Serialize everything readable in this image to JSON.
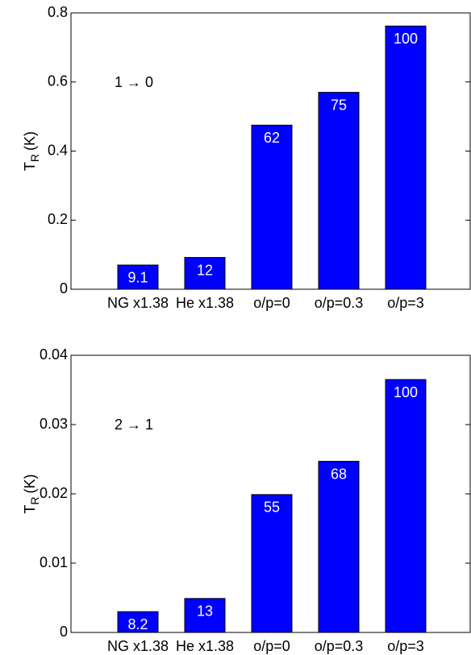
{
  "chart_data": [
    {
      "type": "bar",
      "annotation": "1 → 0",
      "ylabel": {
        "main": "T",
        "sub": "R",
        "unit": "(K)"
      },
      "categories": [
        "NG x1.38",
        "He x1.38",
        "o/p=0",
        "o/p=0.3",
        "o/p=3"
      ],
      "values": [
        0.07,
        0.092,
        0.475,
        0.57,
        0.762
      ],
      "bar_labels": [
        "9.1",
        "12",
        "62",
        "75",
        "100"
      ],
      "color": "#0000ff",
      "ylim": [
        0,
        0.8
      ],
      "yticks": [
        0,
        0.2,
        0.4,
        0.6,
        0.8
      ]
    },
    {
      "type": "bar",
      "annotation": "2 → 1",
      "ylabel": {
        "main": "T",
        "sub": "R",
        "unit": "(K)"
      },
      "categories": [
        "NG x1.38",
        "He x1.38",
        "o/p=0",
        "o/p=0.3",
        "o/p=3"
      ],
      "values": [
        0.003,
        0.0049,
        0.0199,
        0.0247,
        0.0365
      ],
      "bar_labels": [
        "8.2",
        "13",
        "55",
        "68",
        "100"
      ],
      "color": "#0000ff",
      "ylim": [
        0,
        0.04
      ],
      "yticks": [
        0,
        0.01,
        0.02,
        0.03,
        0.04
      ]
    }
  ]
}
